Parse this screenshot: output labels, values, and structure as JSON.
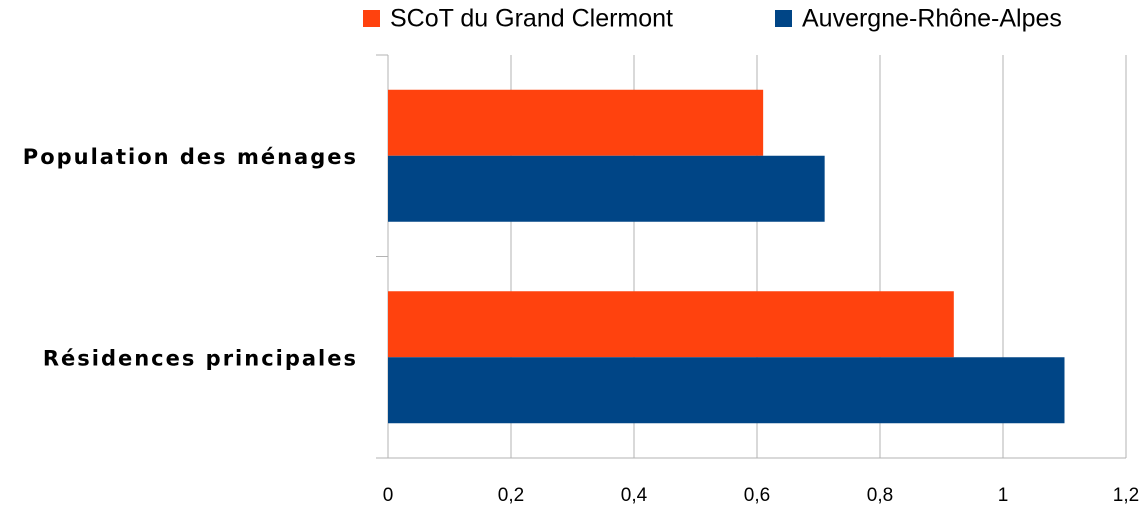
{
  "chart_data": {
    "type": "hbar",
    "categories": [
      "Population des ménages",
      "Résidences principales"
    ],
    "series": [
      {
        "name": "SCoT du Grand Clermont",
        "color": "#ff420e",
        "values": [
          0.61,
          0.92
        ]
      },
      {
        "name": "Auvergne-Rhône-Alpes",
        "color": "#004586",
        "values": [
          0.71,
          1.1
        ]
      }
    ],
    "xlim": [
      0,
      1.2
    ],
    "xticks": [
      0,
      {
        "value": 0.2,
        "label": "0,2"
      },
      {
        "value": 0.4,
        "label": "0,4"
      },
      {
        "value": 0.6,
        "label": "0,6"
      },
      {
        "value": 0.8,
        "label": "0,8"
      },
      1,
      {
        "value": 1.2,
        "label": "1,2"
      }
    ],
    "grid": true
  }
}
